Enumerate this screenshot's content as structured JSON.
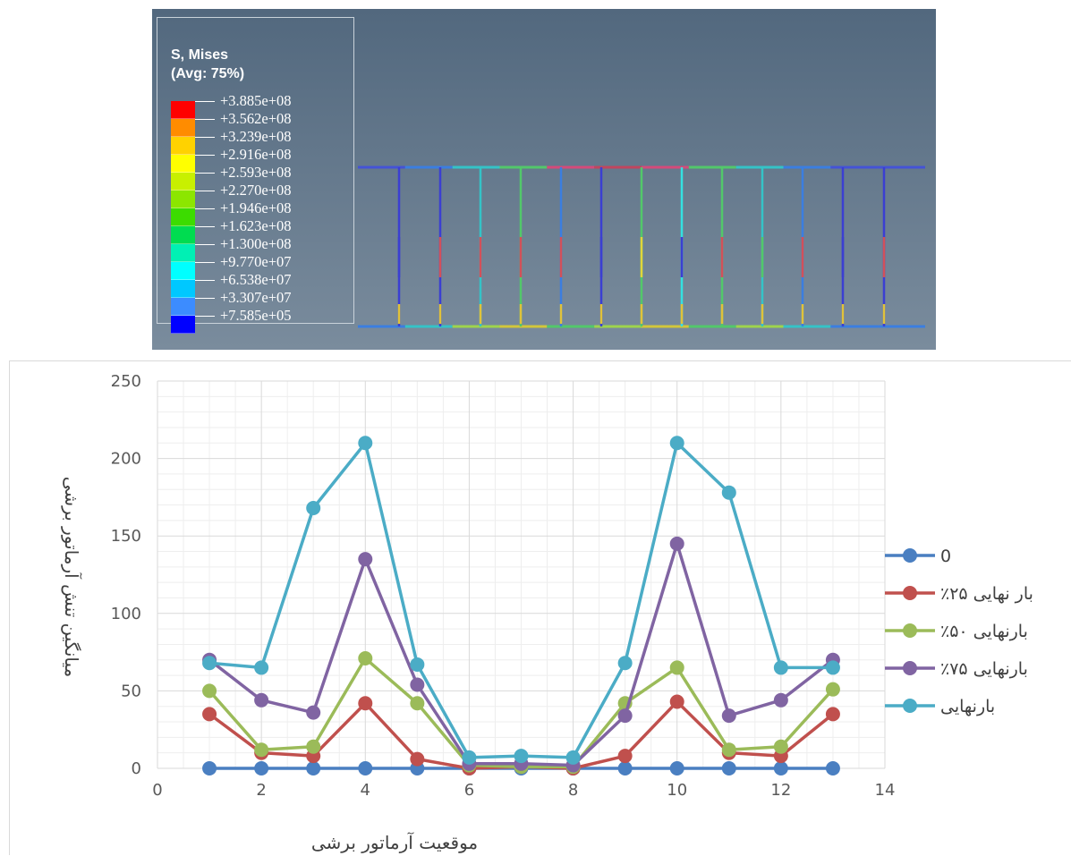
{
  "fea": {
    "legend": {
      "title_line1": "S, Mises",
      "title_line2": "(Avg: 75%)",
      "levels": [
        {
          "label": "+3.885e+08",
          "color": "#ff0000"
        },
        {
          "label": "+3.562e+08",
          "color": "#ff8c00"
        },
        {
          "label": "+3.239e+08",
          "color": "#ffd200"
        },
        {
          "label": "+2.916e+08",
          "color": "#ffff00"
        },
        {
          "label": "+2.593e+08",
          "color": "#c8f000"
        },
        {
          "label": "+2.270e+08",
          "color": "#8ce600"
        },
        {
          "label": "+1.946e+08",
          "color": "#3cdc00"
        },
        {
          "label": "+1.623e+08",
          "color": "#00dc50"
        },
        {
          "label": "+1.300e+08",
          "color": "#00f0b4"
        },
        {
          "label": "+9.770e+07",
          "color": "#00ffff"
        },
        {
          "label": "+6.538e+07",
          "color": "#00c8ff"
        },
        {
          "label": "+3.307e+07",
          "color": "#3c8cff"
        },
        {
          "label": "+7.585e+05",
          "color": "#0000ff"
        }
      ]
    }
  },
  "chart_data": {
    "type": "line",
    "title": "",
    "xlabel": "موقعیت آرماتور برشی",
    "ylabel": "میانگین تنش آرماتور برشی",
    "xlim": [
      0,
      14
    ],
    "ylim": [
      0,
      250
    ],
    "xticks": [
      0,
      2,
      4,
      6,
      8,
      10,
      12,
      14
    ],
    "yticks": [
      0,
      50,
      100,
      150,
      200,
      250
    ],
    "grid": true,
    "legend_position": "right",
    "x": [
      1,
      2,
      3,
      4,
      5,
      6,
      7,
      8,
      9,
      10,
      11,
      12,
      13
    ],
    "series": [
      {
        "name": "0",
        "color": "#4a7fc1",
        "values": [
          0,
          0,
          0,
          0,
          0,
          0,
          0,
          0,
          0,
          0,
          0,
          0,
          0
        ]
      },
      {
        "name": "٪۲۵ بار نهایی",
        "color": "#c0504d",
        "values": [
          35,
          10,
          8,
          42,
          6,
          0,
          1,
          0,
          8,
          43,
          10,
          8,
          35
        ]
      },
      {
        "name": "٪۵۰ بارنهایی",
        "color": "#9bbb59",
        "values": [
          50,
          12,
          14,
          71,
          42,
          2,
          1,
          1,
          42,
          65,
          12,
          14,
          51
        ]
      },
      {
        "name": "٪۷۵ بارنهایی",
        "color": "#8064a2",
        "values": [
          70,
          44,
          36,
          135,
          54,
          3,
          3,
          2,
          34,
          145,
          34,
          44,
          70
        ]
      },
      {
        "name": "بارنهایی",
        "color": "#4bacc6",
        "values": [
          68,
          65,
          168,
          210,
          67,
          7,
          8,
          7,
          68,
          210,
          178,
          65,
          65
        ]
      }
    ]
  }
}
